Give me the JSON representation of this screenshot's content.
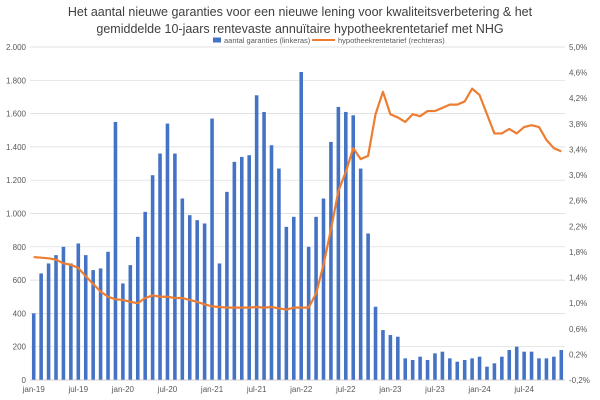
{
  "chart_data": {
    "type": "bar+line",
    "title": [
      "Het aantal nieuwe garanties voor een nieuwe lening voor kwaliteitsverbetering & het",
      "gemiddelde 10-jaars rentevaste annuïtaire hypotheekrentetarief met NHG"
    ],
    "legend": {
      "position": "top",
      "entries": [
        "aantal garanties (linkeras)",
        "hypotheekrentetarief (rechteras)"
      ]
    },
    "colors": {
      "bars": "#4472c4",
      "line": "#ed7d31",
      "grid": "#d9d9d9",
      "text": "#595959"
    },
    "x_tick_labels": [
      "jan-19",
      "jul-19",
      "jan-20",
      "jul-20",
      "jan-21",
      "jul-21",
      "jan-22",
      "jul-22",
      "jan-23",
      "jul-23",
      "jan-24",
      "jul-24"
    ],
    "x_tick_months": [
      0,
      6,
      12,
      18,
      24,
      30,
      36,
      42,
      48,
      54,
      60,
      66
    ],
    "month_count": 72,
    "y_left": {
      "range": [
        0,
        2000
      ],
      "ticks": [
        0,
        200,
        400,
        600,
        800,
        1000,
        1200,
        1400,
        1600,
        1800,
        2000
      ],
      "tick_labels": [
        "0",
        "200",
        "400",
        "600",
        "800",
        "1.000",
        "1.200",
        "1.400",
        "1.600",
        "1.800",
        "2.000"
      ]
    },
    "y_right": {
      "range": [
        -0.2,
        5.0
      ],
      "ticks": [
        -0.2,
        0.2,
        0.6,
        1.0,
        1.4,
        1.8,
        2.2,
        2.6,
        3.0,
        3.4,
        3.8,
        4.2,
        4.6,
        5.0
      ],
      "tick_labels": [
        "-0,2%",
        "0,2%",
        "0,6%",
        "1,0%",
        "1,4%",
        "1,8%",
        "2,2%",
        "2,6%",
        "3,0%",
        "3,4%",
        "3,8%",
        "4,2%",
        "4,6%",
        "5,0%"
      ]
    },
    "grid": true,
    "series": [
      {
        "name": "aantal garanties (linkeras)",
        "type": "bar",
        "axis": "left",
        "values": [
          400,
          640,
          700,
          750,
          800,
          700,
          820,
          750,
          660,
          670,
          770,
          1550,
          580,
          690,
          860,
          1010,
          1230,
          1360,
          1540,
          1360,
          1090,
          990,
          960,
          940,
          1570,
          700,
          1130,
          1310,
          1340,
          1350,
          1710,
          1610,
          1410,
          1270,
          920,
          980,
          1850,
          800,
          980,
          1090,
          1430,
          1640,
          1610,
          1590,
          1270,
          880,
          440,
          300,
          270,
          260,
          130,
          120,
          140,
          120,
          160,
          170,
          130,
          110,
          120,
          130,
          140,
          80,
          100,
          140,
          180,
          200,
          170,
          170,
          130,
          130,
          140,
          180
        ]
      },
      {
        "name": "hypotheekrentetarief (rechteras)",
        "type": "line",
        "axis": "right",
        "values": [
          1.72,
          1.71,
          1.7,
          1.68,
          1.62,
          1.6,
          1.55,
          1.42,
          1.3,
          1.18,
          1.1,
          1.06,
          1.05,
          1.02,
          1.0,
          1.08,
          1.12,
          1.1,
          1.1,
          1.08,
          1.08,
          1.05,
          1.02,
          0.98,
          0.95,
          0.94,
          0.93,
          0.93,
          0.93,
          0.93,
          0.94,
          0.93,
          0.94,
          0.92,
          0.9,
          0.93,
          0.93,
          0.93,
          1.15,
          1.6,
          2.15,
          2.75,
          3.05,
          3.42,
          3.25,
          3.3,
          3.95,
          4.3,
          3.95,
          3.9,
          3.83,
          3.95,
          3.92,
          4.0,
          4.0,
          4.05,
          4.1,
          4.1,
          4.15,
          4.35,
          4.25,
          3.95,
          3.65,
          3.65,
          3.72,
          3.65,
          3.75,
          3.78,
          3.75,
          3.55,
          3.42,
          3.37
        ]
      }
    ]
  }
}
